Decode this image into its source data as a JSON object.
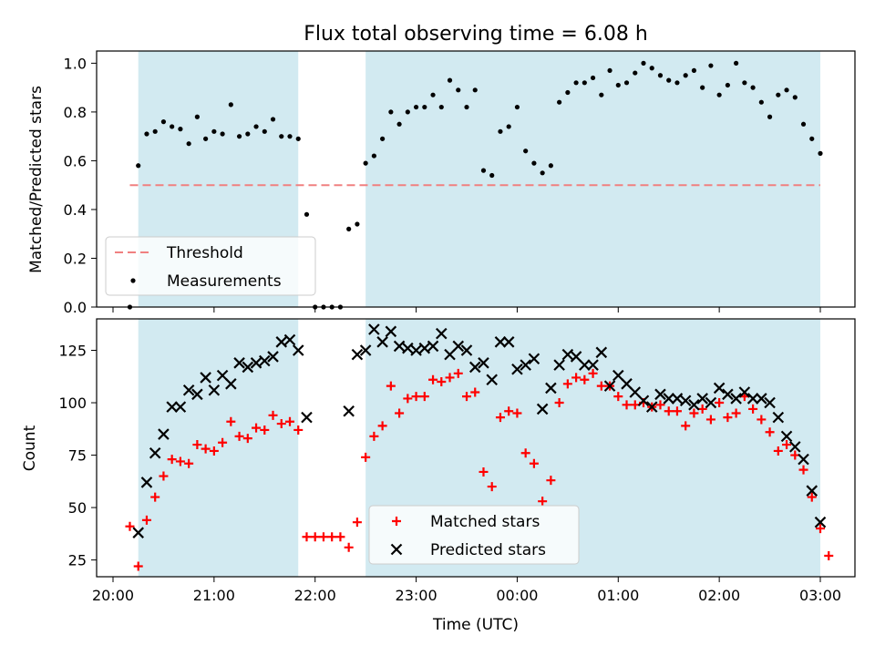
{
  "title": "Flux total observing time = 6.08 h",
  "colors": {
    "shade": "#add8e6",
    "threshold": "#f08080",
    "matched": "#ff0000",
    "predicted": "#000000",
    "measurement": "#000000"
  },
  "chart_data": [
    {
      "type": "scatter",
      "ylabel": "Matched/Predicted stars",
      "xlabel": "",
      "xlim": [
        "20:00",
        "03:00"
      ],
      "ylim": [
        0,
        1.05
      ],
      "yticks": [
        0.0,
        0.2,
        0.4,
        0.6,
        0.8,
        1.0
      ],
      "ytick_labels": [
        "0.0",
        "0.2",
        "0.4",
        "0.6",
        "0.8",
        "1.0"
      ],
      "xtick_labels": [],
      "shaded_intervals": [
        [
          "20:15",
          "21:50"
        ],
        [
          "22:30",
          "03:00"
        ]
      ],
      "threshold": 0.5,
      "threshold_range": [
        "20:10",
        "03:00"
      ],
      "legend": {
        "position": "lower left",
        "entries": [
          "Threshold",
          "Measurements"
        ]
      },
      "series": [
        {
          "name": "Measurements",
          "points": [
            [
              "20:10",
              0.0
            ],
            [
              "20:15",
              0.58
            ],
            [
              "20:20",
              0.71
            ],
            [
              "20:25",
              0.72
            ],
            [
              "20:30",
              0.76
            ],
            [
              "20:35",
              0.74
            ],
            [
              "20:40",
              0.73
            ],
            [
              "20:45",
              0.67
            ],
            [
              "20:50",
              0.78
            ],
            [
              "20:55",
              0.69
            ],
            [
              "21:00",
              0.72
            ],
            [
              "21:05",
              0.71
            ],
            [
              "21:10",
              0.83
            ],
            [
              "21:15",
              0.7
            ],
            [
              "21:20",
              0.71
            ],
            [
              "21:25",
              0.74
            ],
            [
              "21:30",
              0.72
            ],
            [
              "21:35",
              0.77
            ],
            [
              "21:40",
              0.7
            ],
            [
              "21:45",
              0.7
            ],
            [
              "21:50",
              0.69
            ],
            [
              "21:55",
              0.38
            ],
            [
              "22:00",
              0.0
            ],
            [
              "22:05",
              0.0
            ],
            [
              "22:10",
              0.0
            ],
            [
              "22:15",
              0.0
            ],
            [
              "22:20",
              0.32
            ],
            [
              "22:25",
              0.34
            ],
            [
              "22:30",
              0.59
            ],
            [
              "22:35",
              0.62
            ],
            [
              "22:40",
              0.69
            ],
            [
              "22:45",
              0.8
            ],
            [
              "22:50",
              0.75
            ],
            [
              "22:55",
              0.8
            ],
            [
              "23:00",
              0.82
            ],
            [
              "23:05",
              0.82
            ],
            [
              "23:10",
              0.87
            ],
            [
              "23:15",
              0.82
            ],
            [
              "23:20",
              0.93
            ],
            [
              "23:25",
              0.89
            ],
            [
              "23:30",
              0.82
            ],
            [
              "23:35",
              0.89
            ],
            [
              "23:40",
              0.56
            ],
            [
              "23:45",
              0.54
            ],
            [
              "23:50",
              0.72
            ],
            [
              "23:55",
              0.74
            ],
            [
              "00:00",
              0.82
            ],
            [
              "00:05",
              0.64
            ],
            [
              "00:10",
              0.59
            ],
            [
              "00:15",
              0.55
            ],
            [
              "00:20",
              0.58
            ],
            [
              "00:25",
              0.84
            ],
            [
              "00:30",
              0.88
            ],
            [
              "00:35",
              0.92
            ],
            [
              "00:40",
              0.92
            ],
            [
              "00:45",
              0.94
            ],
            [
              "00:50",
              0.87
            ],
            [
              "00:55",
              0.97
            ],
            [
              "01:00",
              0.91
            ],
            [
              "01:05",
              0.92
            ],
            [
              "01:10",
              0.96
            ],
            [
              "01:15",
              1.0
            ],
            [
              "01:20",
              0.98
            ],
            [
              "01:25",
              0.95
            ],
            [
              "01:30",
              0.93
            ],
            [
              "01:35",
              0.92
            ],
            [
              "01:40",
              0.95
            ],
            [
              "01:45",
              0.97
            ],
            [
              "01:50",
              0.9
            ],
            [
              "01:55",
              0.99
            ],
            [
              "02:00",
              0.87
            ],
            [
              "02:05",
              0.91
            ],
            [
              "02:10",
              1.0
            ],
            [
              "02:15",
              0.92
            ],
            [
              "02:20",
              0.9
            ],
            [
              "02:25",
              0.84
            ],
            [
              "02:30",
              0.78
            ],
            [
              "02:35",
              0.87
            ],
            [
              "02:40",
              0.89
            ],
            [
              "02:45",
              0.86
            ],
            [
              "02:50",
              0.75
            ],
            [
              "02:55",
              0.69
            ],
            [
              "03:00",
              0.63
            ]
          ]
        }
      ]
    },
    {
      "type": "scatter",
      "ylabel": "Count",
      "xlabel": "Time (UTC)",
      "xlim": [
        "20:00",
        "03:00"
      ],
      "ylim": [
        17,
        140
      ],
      "yticks": [
        25,
        50,
        75,
        100,
        125
      ],
      "ytick_labels": [
        "25",
        "50",
        "75",
        "100",
        "125"
      ],
      "xtick_labels": [
        "20:00",
        "21:00",
        "22:00",
        "23:00",
        "00:00",
        "01:00",
        "02:00",
        "03:00"
      ],
      "shaded_intervals": [
        [
          "20:15",
          "21:50"
        ],
        [
          "22:30",
          "03:00"
        ]
      ],
      "legend": {
        "position": "lower center",
        "entries": [
          "Matched stars",
          "Predicted stars"
        ]
      },
      "series": [
        {
          "name": "Matched stars",
          "points": [
            [
              "20:10",
              41
            ],
            [
              "20:15",
              22
            ],
            [
              "20:20",
              44
            ],
            [
              "20:25",
              55
            ],
            [
              "20:30",
              65
            ],
            [
              "20:35",
              73
            ],
            [
              "20:40",
              72
            ],
            [
              "20:45",
              71
            ],
            [
              "20:50",
              80
            ],
            [
              "20:55",
              78
            ],
            [
              "21:00",
              77
            ],
            [
              "21:05",
              81
            ],
            [
              "21:10",
              91
            ],
            [
              "21:15",
              84
            ],
            [
              "21:20",
              83
            ],
            [
              "21:25",
              88
            ],
            [
              "21:30",
              87
            ],
            [
              "21:35",
              94
            ],
            [
              "21:40",
              90
            ],
            [
              "21:45",
              91
            ],
            [
              "21:50",
              87
            ],
            [
              "21:55",
              36
            ],
            [
              "22:00",
              36
            ],
            [
              "22:05",
              36
            ],
            [
              "22:10",
              36
            ],
            [
              "22:15",
              36
            ],
            [
              "22:20",
              31
            ],
            [
              "22:25",
              43
            ],
            [
              "22:30",
              74
            ],
            [
              "22:35",
              84
            ],
            [
              "22:40",
              89
            ],
            [
              "22:45",
              108
            ],
            [
              "22:50",
              95
            ],
            [
              "22:55",
              102
            ],
            [
              "23:00",
              103
            ],
            [
              "23:05",
              103
            ],
            [
              "23:10",
              111
            ],
            [
              "23:15",
              110
            ],
            [
              "23:20",
              112
            ],
            [
              "23:25",
              114
            ],
            [
              "23:30",
              103
            ],
            [
              "23:35",
              105
            ],
            [
              "23:40",
              67
            ],
            [
              "23:45",
              60
            ],
            [
              "23:50",
              93
            ],
            [
              "23:55",
              96
            ],
            [
              "00:00",
              95
            ],
            [
              "00:05",
              76
            ],
            [
              "00:10",
              71
            ],
            [
              "00:15",
              53
            ],
            [
              "00:20",
              63
            ],
            [
              "00:25",
              100
            ],
            [
              "00:30",
              109
            ],
            [
              "00:35",
              112
            ],
            [
              "00:40",
              111
            ],
            [
              "00:45",
              114
            ],
            [
              "00:50",
              108
            ],
            [
              "00:55",
              108
            ],
            [
              "01:00",
              103
            ],
            [
              "01:05",
              99
            ],
            [
              "01:10",
              99
            ],
            [
              "01:15",
              100
            ],
            [
              "01:20",
              98
            ],
            [
              "01:25",
              99
            ],
            [
              "01:30",
              96
            ],
            [
              "01:35",
              96
            ],
            [
              "01:40",
              89
            ],
            [
              "01:45",
              95
            ],
            [
              "01:50",
              97
            ],
            [
              "01:55",
              92
            ],
            [
              "02:00",
              100
            ],
            [
              "02:05",
              93
            ],
            [
              "02:10",
              95
            ],
            [
              "02:15",
              103
            ],
            [
              "02:20",
              97
            ],
            [
              "02:25",
              92
            ],
            [
              "02:30",
              86
            ],
            [
              "02:35",
              77
            ],
            [
              "02:40",
              80
            ],
            [
              "02:45",
              75
            ],
            [
              "02:50",
              68
            ],
            [
              "02:55",
              55
            ],
            [
              "03:00",
              40
            ],
            [
              "03:05",
              27
            ]
          ]
        },
        {
          "name": "Predicted stars",
          "points": [
            [
              "20:15",
              38
            ],
            [
              "20:20",
              62
            ],
            [
              "20:25",
              76
            ],
            [
              "20:30",
              85
            ],
            [
              "20:35",
              98
            ],
            [
              "20:40",
              98
            ],
            [
              "20:45",
              106
            ],
            [
              "20:50",
              104
            ],
            [
              "20:55",
              112
            ],
            [
              "21:00",
              106
            ],
            [
              "21:05",
              113
            ],
            [
              "21:10",
              109
            ],
            [
              "21:15",
              119
            ],
            [
              "21:20",
              117
            ],
            [
              "21:25",
              119
            ],
            [
              "21:30",
              120
            ],
            [
              "21:35",
              122
            ],
            [
              "21:40",
              129
            ],
            [
              "21:45",
              130
            ],
            [
              "21:50",
              125
            ],
            [
              "21:55",
              93
            ],
            [
              "22:20",
              96
            ],
            [
              "22:25",
              123
            ],
            [
              "22:30",
              125
            ],
            [
              "22:35",
              135
            ],
            [
              "22:40",
              129
            ],
            [
              "22:45",
              134
            ],
            [
              "22:50",
              127
            ],
            [
              "22:55",
              126
            ],
            [
              "23:00",
              125
            ],
            [
              "23:05",
              126
            ],
            [
              "23:10",
              127
            ],
            [
              "23:15",
              133
            ],
            [
              "23:20",
              123
            ],
            [
              "23:25",
              127
            ],
            [
              "23:30",
              125
            ],
            [
              "23:35",
              117
            ],
            [
              "23:40",
              119
            ],
            [
              "23:45",
              111
            ],
            [
              "23:50",
              129
            ],
            [
              "23:55",
              129
            ],
            [
              "00:00",
              116
            ],
            [
              "00:05",
              118
            ],
            [
              "00:10",
              121
            ],
            [
              "00:15",
              97
            ],
            [
              "00:20",
              107
            ],
            [
              "00:25",
              118
            ],
            [
              "00:30",
              123
            ],
            [
              "00:35",
              122
            ],
            [
              "00:40",
              118
            ],
            [
              "00:45",
              118
            ],
            [
              "00:50",
              124
            ],
            [
              "00:55",
              108
            ],
            [
              "01:00",
              113
            ],
            [
              "01:05",
              109
            ],
            [
              "01:10",
              105
            ],
            [
              "01:15",
              101
            ],
            [
              "01:20",
              98
            ],
            [
              "01:25",
              104
            ],
            [
              "01:30",
              102
            ],
            [
              "01:35",
              102
            ],
            [
              "01:40",
              101
            ],
            [
              "01:45",
              99
            ],
            [
              "01:50",
              102
            ],
            [
              "01:55",
              100
            ],
            [
              "02:00",
              107
            ],
            [
              "02:05",
              104
            ],
            [
              "02:10",
              102
            ],
            [
              "02:15",
              105
            ],
            [
              "02:20",
              102
            ],
            [
              "02:25",
              102
            ],
            [
              "02:30",
              100
            ],
            [
              "02:35",
              93
            ],
            [
              "02:40",
              84
            ],
            [
              "02:45",
              79
            ],
            [
              "02:50",
              73
            ],
            [
              "02:55",
              58
            ],
            [
              "03:00",
              43
            ]
          ]
        }
      ]
    }
  ]
}
